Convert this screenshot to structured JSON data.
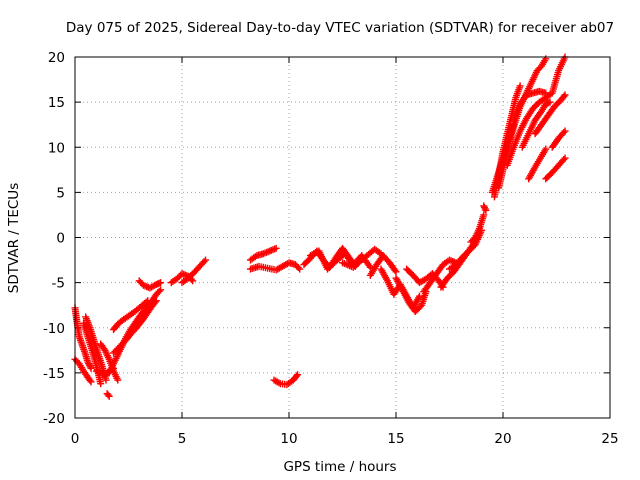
{
  "chart_data": {
    "type": "scatter",
    "title": "Day 075 of 2025, Sidereal Day-to-day VTEC variation (SDTVAR) for receiver ab07",
    "xlabel": "GPS time / hours",
    "ylabel": "SDTVAR / TECUs",
    "xlim": [
      0,
      25
    ],
    "ylim": [
      -20,
      20
    ],
    "x_ticks": [
      "0",
      "5",
      "10",
      "15",
      "20",
      "25"
    ],
    "y_ticks": [
      "-20",
      "-15",
      "-10",
      "-5",
      "0",
      "5",
      "10",
      "15",
      "20"
    ],
    "grid": true,
    "marker": "plus",
    "color": "#ff0000",
    "series": [
      {
        "x": [
          0.0,
          0.1,
          0.2,
          0.35,
          0.5,
          0.6,
          0.75
        ],
        "y": [
          -7.8,
          -9.5,
          -11.0,
          -12.0,
          -13.0,
          -13.8,
          -14.5
        ]
      },
      {
        "x": [
          0.0,
          0.2,
          0.4,
          0.6,
          0.75
        ],
        "y": [
          -13.5,
          -14.0,
          -14.8,
          -15.5,
          -16.0
        ]
      },
      {
        "x": [
          0.4,
          0.6,
          0.8,
          1.0,
          1.2
        ],
        "y": [
          -9.5,
          -11.0,
          -12.5,
          -14.2,
          -16.2
        ]
      },
      {
        "x": [
          0.5,
          0.7,
          0.9,
          1.1,
          1.3,
          1.45
        ],
        "y": [
          -8.8,
          -10.0,
          -11.5,
          -13.0,
          -14.5,
          -15.8
        ]
      },
      {
        "x": [
          1.0,
          1.2,
          1.4,
          1.6,
          1.8
        ],
        "y": [
          -14.8,
          -15.0,
          -15.2,
          -14.8,
          -14.5
        ]
      },
      {
        "x": [
          1.2,
          1.4,
          1.6,
          1.8,
          2.0
        ],
        "y": [
          -11.8,
          -12.5,
          -13.5,
          -14.8,
          -15.8
        ]
      },
      {
        "x": [
          1.5,
          1.6
        ],
        "y": [
          -17.3,
          -17.6
        ]
      },
      {
        "x": [
          1.6,
          1.8,
          2.0,
          2.2,
          2.4,
          2.6,
          2.8,
          3.0,
          3.2,
          3.4,
          3.6,
          3.8,
          4.0
        ],
        "y": [
          -15.0,
          -14.0,
          -13.0,
          -12.0,
          -11.0,
          -10.2,
          -9.5,
          -8.8,
          -8.2,
          -7.5,
          -7.0,
          -6.3,
          -5.8
        ]
      },
      {
        "x": [
          1.8,
          2.0,
          2.2,
          2.4,
          2.6,
          2.8,
          3.0,
          3.2,
          3.4,
          3.6,
          3.8
        ],
        "y": [
          -12.8,
          -12.3,
          -11.8,
          -11.3,
          -10.7,
          -10.2,
          -9.6,
          -9.0,
          -8.3,
          -7.6,
          -7.0
        ]
      },
      {
        "x": [
          1.8,
          2.0,
          2.2,
          2.5,
          2.8,
          3.1,
          3.4
        ],
        "y": [
          -10.2,
          -9.6,
          -9.2,
          -8.7,
          -8.2,
          -7.6,
          -7.0
        ]
      },
      {
        "x": [
          3.0,
          3.2,
          3.5,
          3.8,
          4.0
        ],
        "y": [
          -4.8,
          -5.3,
          -5.6,
          -5.2,
          -5.0
        ]
      },
      {
        "x": [
          4.5,
          4.8,
          5.0,
          5.3,
          5.5
        ],
        "y": [
          -5.0,
          -4.5,
          -4.0,
          -4.3,
          -4.8
        ]
      },
      {
        "x": [
          5.0,
          5.3,
          5.6,
          5.9,
          6.1
        ],
        "y": [
          -5.0,
          -4.5,
          -3.8,
          -3.0,
          -2.5
        ]
      },
      {
        "x": [
          8.2,
          8.5,
          8.8,
          9.1,
          9.4
        ],
        "y": [
          -2.5,
          -2.0,
          -1.8,
          -1.5,
          -1.2
        ]
      },
      {
        "x": [
          8.2,
          8.6,
          9.0,
          9.4,
          9.7,
          10.0,
          10.3,
          10.5
        ],
        "y": [
          -3.5,
          -3.2,
          -3.4,
          -3.6,
          -3.2,
          -2.8,
          -3.0,
          -3.5
        ]
      },
      {
        "x": [
          9.3,
          9.6,
          9.9,
          10.2,
          10.4
        ],
        "y": [
          -15.8,
          -16.2,
          -16.3,
          -15.8,
          -15.2
        ]
      },
      {
        "x": [
          10.7,
          11.0,
          11.3,
          11.6,
          11.9,
          12.2,
          12.5,
          12.8,
          13.1,
          13.4
        ],
        "y": [
          -3.0,
          -2.3,
          -1.5,
          -2.5,
          -3.3,
          -2.2,
          -1.2,
          -2.2,
          -3.2,
          -2.3
        ]
      },
      {
        "x": [
          11.0,
          11.4,
          11.8,
          12.2,
          12.6,
          13.0,
          13.4,
          13.8
        ],
        "y": [
          -2.0,
          -1.5,
          -3.5,
          -2.6,
          -1.8,
          -3.0,
          -2.0,
          -3.3
        ]
      },
      {
        "x": [
          12.5,
          13.0,
          13.5,
          14.0,
          14.3
        ],
        "y": [
          -2.8,
          -3.3,
          -2.3,
          -1.3,
          -1.8
        ]
      },
      {
        "x": [
          13.8,
          14.1,
          14.4,
          14.7,
          15.0
        ],
        "y": [
          -4.2,
          -3.0,
          -2.0,
          -2.8,
          -3.8
        ]
      },
      {
        "x": [
          14.3,
          14.6,
          14.9,
          15.2,
          15.5,
          15.8,
          16.1
        ],
        "y": [
          -3.5,
          -4.8,
          -6.3,
          -5.2,
          -6.5,
          -7.8,
          -6.5
        ]
      },
      {
        "x": [
          15.0,
          15.3,
          15.6,
          15.9,
          16.2,
          16.4
        ],
        "y": [
          -4.5,
          -5.8,
          -7.2,
          -8.2,
          -7.5,
          -6.0
        ]
      },
      {
        "x": [
          15.5,
          15.8,
          16.1,
          16.4,
          16.7,
          17.0,
          17.2
        ],
        "y": [
          -3.5,
          -4.2,
          -5.0,
          -4.6,
          -4.0,
          -4.8,
          -5.5
        ]
      },
      {
        "x": [
          16.3,
          16.6,
          16.9,
          17.2,
          17.5,
          17.8
        ],
        "y": [
          -6.0,
          -5.0,
          -4.0,
          -3.0,
          -2.5,
          -2.8
        ]
      },
      {
        "x": [
          17.1,
          17.4,
          17.7,
          18.0,
          18.3,
          18.6,
          18.8
        ],
        "y": [
          -5.5,
          -4.5,
          -3.8,
          -2.8,
          -1.8,
          -0.8,
          0.0
        ]
      },
      {
        "x": [
          17.5,
          17.8,
          18.1,
          18.4,
          18.7,
          19.0
        ],
        "y": [
          -3.5,
          -3.0,
          -2.2,
          -1.5,
          -0.8,
          0.8
        ]
      },
      {
        "x": [
          18.5,
          18.7,
          18.9,
          19.1
        ],
        "y": [
          -0.5,
          0.0,
          1.0,
          2.5
        ]
      },
      {
        "x": [
          19.1,
          19.2
        ],
        "y": [
          3.5,
          3.0
        ]
      },
      {
        "x": [
          19.6,
          19.8,
          20.0,
          20.2,
          20.4,
          20.6,
          20.8
        ],
        "y": [
          4.5,
          7.0,
          9.5,
          11.5,
          13.5,
          15.5,
          16.8
        ]
      },
      {
        "x": [
          19.5,
          19.7,
          19.9,
          20.1,
          20.3,
          20.5
        ],
        "y": [
          5.0,
          6.5,
          8.0,
          9.5,
          11.0,
          12.5
        ]
      },
      {
        "x": [
          19.8,
          20.0,
          20.2,
          20.4,
          20.6,
          20.8,
          21.0,
          21.2,
          21.4,
          21.6,
          21.8,
          22.0
        ],
        "y": [
          5.5,
          7.5,
          9.5,
          11.5,
          13.0,
          14.5,
          15.5,
          16.5,
          17.5,
          18.5,
          19.0,
          19.8
        ]
      },
      {
        "x": [
          20.2,
          20.5,
          20.8,
          21.1,
          21.4,
          21.7,
          22.0,
          22.3,
          22.6,
          22.9
        ],
        "y": [
          8.0,
          10.0,
          11.8,
          13.2,
          14.3,
          15.0,
          15.5,
          16.0,
          18.5,
          20.0
        ]
      },
      {
        "x": [
          20.5,
          20.8,
          21.1,
          21.4,
          21.7,
          22.0
        ],
        "y": [
          13.0,
          14.8,
          15.8,
          16.0,
          16.2,
          16.0
        ]
      },
      {
        "x": [
          20.9,
          21.2,
          21.5,
          21.8,
          22.0,
          22.2
        ],
        "y": [
          10.0,
          11.5,
          13.0,
          14.0,
          14.8,
          15.0
        ]
      },
      {
        "x": [
          21.5,
          21.8,
          22.1,
          22.4,
          22.7,
          22.9
        ],
        "y": [
          11.5,
          12.5,
          13.5,
          14.5,
          15.2,
          15.8
        ]
      },
      {
        "x": [
          21.2,
          21.5,
          21.8,
          22.0
        ],
        "y": [
          6.5,
          7.8,
          9.0,
          9.8
        ]
      },
      {
        "x": [
          22.3,
          22.6,
          22.9
        ],
        "y": [
          10.0,
          11.0,
          11.8
        ]
      },
      {
        "x": [
          22.0,
          22.3,
          22.6,
          22.9
        ],
        "y": [
          6.5,
          7.2,
          8.0,
          8.8
        ]
      }
    ]
  }
}
